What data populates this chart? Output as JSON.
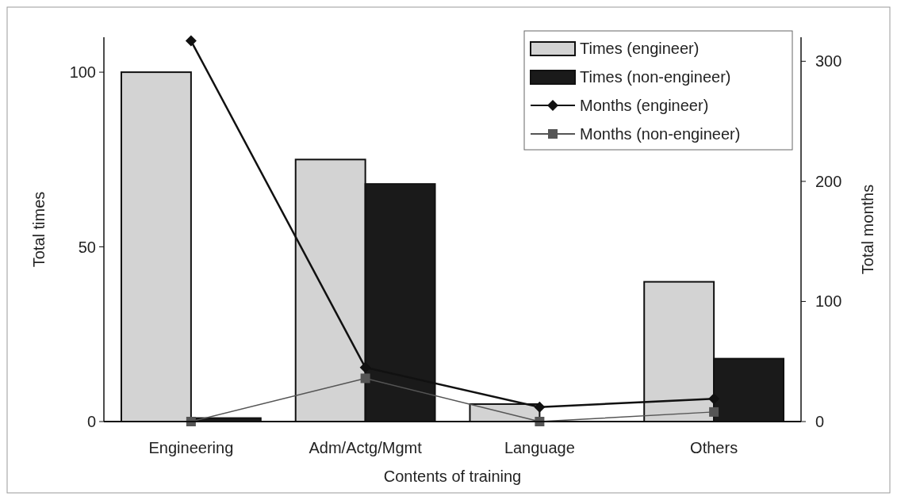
{
  "chart_data": {
    "type": "bar",
    "xlabel": "Contents of training",
    "ylabel": "Total times",
    "y2label": "Total months",
    "categories": [
      "Engineering",
      "Adm/Actg/Mgmt",
      "Language",
      "Others"
    ],
    "series": [
      {
        "name": "Times (engineer)",
        "color": "#d3d3d3",
        "values": [
          100,
          75,
          5,
          40
        ]
      },
      {
        "name": "Times (non-engineer)",
        "color": "#1a1a1a",
        "values": [
          1,
          68,
          0,
          18
        ]
      },
      {
        "name": "Months (engineer)",
        "type": "line",
        "axis": "y2",
        "color": "#111111",
        "marker": "diamond",
        "values": [
          317,
          45,
          12,
          19
        ]
      },
      {
        "name": "Months (non-engineer)",
        "type": "line",
        "axis": "y2",
        "color": "#555555",
        "marker": "square",
        "values": [
          0,
          36,
          0,
          8
        ]
      }
    ],
    "ylim": [
      0,
      110
    ],
    "yticks": [
      0,
      50,
      100
    ],
    "y2lim": [
      0,
      320
    ],
    "y2ticks": [
      0,
      100,
      200,
      300
    ],
    "legend": "top right",
    "grid": false
  }
}
